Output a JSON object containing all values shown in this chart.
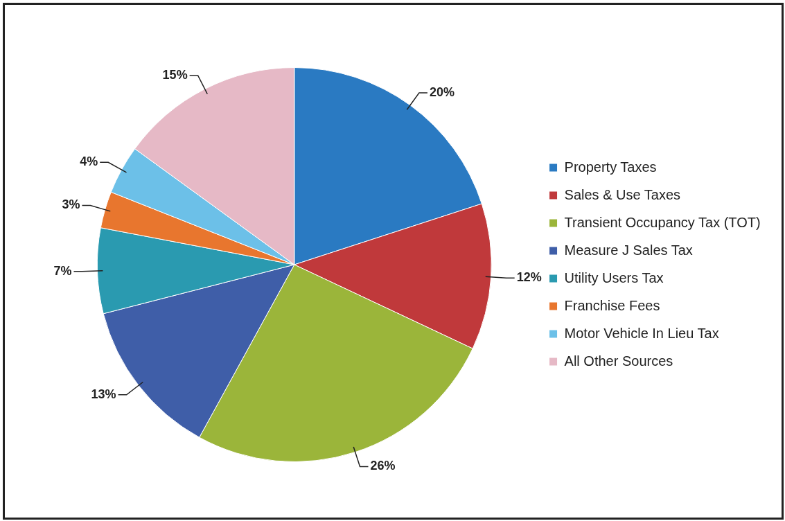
{
  "chart_data": {
    "type": "pie",
    "categories": [
      "Property Taxes",
      "Sales & Use Taxes",
      "Transient Occupancy Tax (TOT)",
      "Measure J Sales Tax",
      "Utility Users Tax",
      "Franchise Fees",
      "Motor Vehicle In Lieu Tax",
      "All Other Sources"
    ],
    "values": [
      20,
      12,
      26,
      13,
      7,
      3,
      4,
      15
    ],
    "colors": [
      "#2a7ac2",
      "#c0393b",
      "#9bb53a",
      "#3f5ea8",
      "#2a9ab0",
      "#e8762e",
      "#6cc0e8",
      "#e6b9c6"
    ],
    "value_labels": [
      "20%",
      "12%",
      "26%",
      "13%",
      "7%",
      "3%",
      "4%",
      "15%"
    ],
    "legend": "right"
  }
}
